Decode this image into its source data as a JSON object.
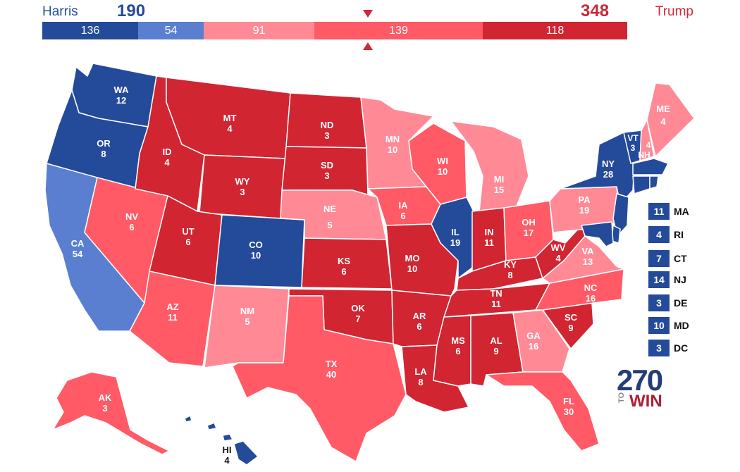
{
  "header": {
    "harris": {
      "name": "Harris",
      "total": "190",
      "color": "#2b4c9f"
    },
    "trump": {
      "name": "Trump",
      "total": "348",
      "color": "#d0283a"
    }
  },
  "bar": [
    {
      "value": 136,
      "label": "136",
      "color": "#244a9a"
    },
    {
      "value": 54,
      "label": "54",
      "color": "#5a7fd0"
    },
    {
      "value": 91,
      "label": "91",
      "color": "#ff8a96"
    },
    {
      "value": 139,
      "label": "139",
      "color": "#ff5a66"
    },
    {
      "value": 118,
      "label": "118",
      "color": "#d12532"
    }
  ],
  "legend_colors": {
    "safe_d": "#244a9a",
    "likely_d": "#5a7fd0",
    "lean_r": "#ff8a96",
    "likely_r": "#ff5a66",
    "safe_r": "#d12532"
  },
  "states": [
    {
      "abbr": "WA",
      "ev": "12"
    },
    {
      "abbr": "OR",
      "ev": "8"
    },
    {
      "abbr": "CA",
      "ev": "54"
    },
    {
      "abbr": "NV",
      "ev": "6"
    },
    {
      "abbr": "ID",
      "ev": "4"
    },
    {
      "abbr": "MT",
      "ev": "4"
    },
    {
      "abbr": "WY",
      "ev": "3"
    },
    {
      "abbr": "UT",
      "ev": "6"
    },
    {
      "abbr": "AZ",
      "ev": "11"
    },
    {
      "abbr": "CO",
      "ev": "10"
    },
    {
      "abbr": "NM",
      "ev": "5"
    },
    {
      "abbr": "ND",
      "ev": "3"
    },
    {
      "abbr": "SD",
      "ev": "3"
    },
    {
      "abbr": "NE",
      "ev": "5"
    },
    {
      "abbr": "KS",
      "ev": "6"
    },
    {
      "abbr": "OK",
      "ev": "7"
    },
    {
      "abbr": "TX",
      "ev": "40"
    },
    {
      "abbr": "MN",
      "ev": "10"
    },
    {
      "abbr": "IA",
      "ev": "6"
    },
    {
      "abbr": "MO",
      "ev": "10"
    },
    {
      "abbr": "AR",
      "ev": "6"
    },
    {
      "abbr": "LA",
      "ev": "8"
    },
    {
      "abbr": "WI",
      "ev": "10"
    },
    {
      "abbr": "IL",
      "ev": "19"
    },
    {
      "abbr": "MI",
      "ev": "15"
    },
    {
      "abbr": "IN",
      "ev": "11"
    },
    {
      "abbr": "OH",
      "ev": "17"
    },
    {
      "abbr": "KY",
      "ev": "8"
    },
    {
      "abbr": "TN",
      "ev": "11"
    },
    {
      "abbr": "MS",
      "ev": "6"
    },
    {
      "abbr": "AL",
      "ev": "9"
    },
    {
      "abbr": "GA",
      "ev": "16"
    },
    {
      "abbr": "FL",
      "ev": "30"
    },
    {
      "abbr": "SC",
      "ev": "9"
    },
    {
      "abbr": "NC",
      "ev": "16"
    },
    {
      "abbr": "VA",
      "ev": "13"
    },
    {
      "abbr": "WV",
      "ev": "4"
    },
    {
      "abbr": "PA",
      "ev": "19"
    },
    {
      "abbr": "NY",
      "ev": "28"
    },
    {
      "abbr": "VT",
      "ev": "3"
    },
    {
      "abbr": "NH",
      "ev": "4"
    },
    {
      "abbr": "ME",
      "ev": "4"
    },
    {
      "abbr": "AK",
      "ev": "3"
    },
    {
      "abbr": "HI",
      "ev": "4"
    }
  ],
  "small_states": [
    {
      "abbr": "MA",
      "ev": "11"
    },
    {
      "abbr": "RI",
      "ev": "4"
    },
    {
      "abbr": "CT",
      "ev": "7"
    },
    {
      "abbr": "NJ",
      "ev": "14"
    },
    {
      "abbr": "DE",
      "ev": "3"
    },
    {
      "abbr": "MD",
      "ev": "10"
    },
    {
      "abbr": "DC",
      "ev": "3"
    }
  ],
  "logo": {
    "number": "270",
    "to": "TO",
    "win": "WIN"
  }
}
